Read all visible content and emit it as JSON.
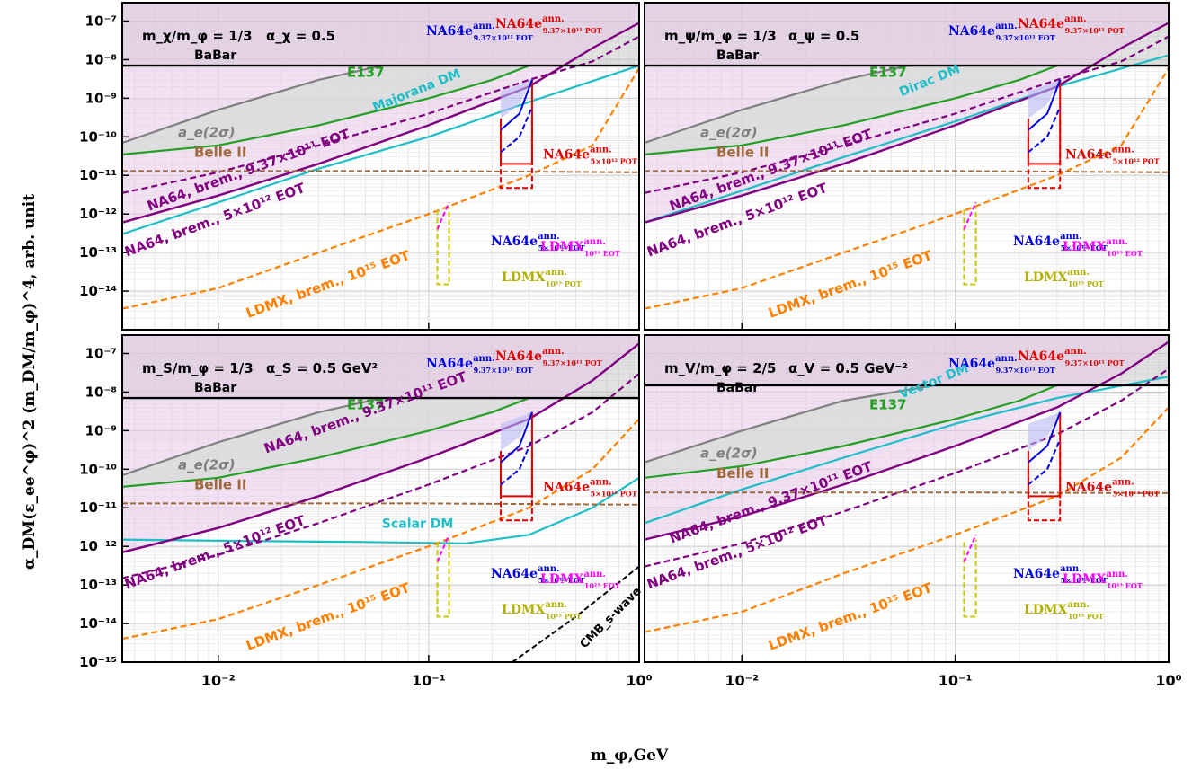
{
  "figure": {
    "ylabel": "α_DM(ε_ee^φ)^2 (m_DM/m_φ)^4, arb. unit",
    "xlabel": "m_φ,GeV",
    "xtick_labels": [
      "10⁻²",
      "10⁻¹",
      "10⁰"
    ],
    "ytick_labels": [
      "10⁻¹⁵",
      "10⁻¹⁴",
      "10⁻¹³",
      "10⁻¹²",
      "10⁻¹¹",
      "10⁻¹⁰",
      "10⁻⁹",
      "10⁻⁸",
      "10⁻⁷"
    ]
  },
  "colors": {
    "babar": "#000000",
    "ae": "#808080",
    "e137": "#22a022",
    "belle": "#a0693a",
    "na64": "#800080",
    "ldmx_brem": "#ff8000",
    "dm": "#1cbfc8",
    "ann_na64_e": "#e00000",
    "ann_na64_e_eot": "#0000e0",
    "ldmx_pot": "#c8c800",
    "ldmx_eot": "#ff00ff",
    "cmb": "#000000"
  },
  "chart_data": [
    {
      "type": "line",
      "header": {
        "ratio": "m_χ/m_φ = 1/3",
        "coupling": "α_χ = 0.5"
      },
      "xlim": [
        0.0035,
        1.0
      ],
      "ylim": [
        1e-15,
        3e-07
      ],
      "xscale": "log",
      "yscale": "log",
      "grid": true,
      "labels": {
        "babar": "BaBar",
        "ae": "a_e(2σ)",
        "e137": "E137",
        "dm": "Majorana DM",
        "belle": "Belle II",
        "na64_937": "NA64, brem., 9.37×10¹¹ EOT",
        "na64_5": "NA64, brem., 5×10¹² EOT",
        "ldmx": "LDMX, brem., 10¹⁵ EOT"
      },
      "series": [
        {
          "name": "BaBar",
          "x": [
            0.0035,
            1.0
          ],
          "y": [
            7e-09,
            7e-09
          ]
        },
        {
          "name": "a_e(2σ)",
          "x": [
            0.0035,
            0.01,
            0.03,
            0.06
          ],
          "y": [
            7e-11,
            5e-10,
            3e-09,
            7e-09
          ]
        },
        {
          "name": "E137",
          "x": [
            0.0035,
            0.01,
            0.03,
            0.1,
            0.2,
            0.3
          ],
          "y": [
            3.5e-11,
            6e-11,
            2e-10,
            1e-09,
            3e-09,
            7e-09
          ]
        },
        {
          "name": "Majorana DM",
          "x": [
            0.0035,
            0.01,
            0.03,
            0.1,
            0.3,
            1.0
          ],
          "y": [
            3e-13,
            2e-12,
            1.5e-11,
            1e-10,
            8e-10,
            7e-09
          ]
        },
        {
          "name": "NA64, brem., 9.37×10¹¹ EOT",
          "x": [
            0.0035,
            0.01,
            0.03,
            0.1,
            0.3,
            0.6,
            1.0
          ],
          "y": [
            6e-13,
            3e-12,
            2e-11,
            2e-10,
            2e-09,
            2e-08,
            9e-08
          ]
        },
        {
          "name": "NA64, brem., 5×10¹² EOT",
          "x": [
            0.0035,
            0.01,
            0.03,
            0.1,
            0.3,
            0.6,
            1.0
          ],
          "y": [
            3.5e-12,
            1.2e-11,
            6e-11,
            4e-10,
            3e-09,
            9e-09,
            4e-08
          ]
        },
        {
          "name": "LDMX, brem., 10¹⁵ EOT",
          "x": [
            0.0035,
            0.01,
            0.03,
            0.1,
            0.3,
            0.6,
            1.0
          ],
          "y": [
            3.5e-15,
            1.2e-14,
            1e-13,
            1e-12,
            1e-11,
            6e-11,
            6e-09
          ]
        },
        {
          "name": "Belle II",
          "x": [
            0.0035,
            0.1,
            1.0
          ],
          "y": [
            1.3e-11,
            1.3e-11,
            1.2e-11
          ]
        }
      ],
      "annotations": [
        {
          "base": "NA64e",
          "sup": "ann.",
          "sub": "9.37×10¹¹ POT",
          "color": "#e00000"
        },
        {
          "base": "NA64e",
          "sup": "ann.",
          "sub": "9.37×10¹¹ EOT",
          "color": "#0000e0"
        },
        {
          "base": "NA64e",
          "sup": "ann.",
          "sub": "5×10¹² POT",
          "color": "#e00000"
        },
        {
          "base": "NA64e",
          "sup": "ann.",
          "sub": "5×10¹² EOT",
          "color": "#0000e0"
        },
        {
          "base": "LDMX",
          "sup": "ann.",
          "sub": "10¹⁵ EOT",
          "color": "#ff00ff"
        },
        {
          "base": "LDMX",
          "sup": "ann.",
          "sub": "10¹⁵ POT",
          "color": "#b0b000"
        }
      ]
    },
    {
      "type": "line",
      "header": {
        "ratio": "m_ψ/m_φ = 1/3",
        "coupling": "α_ψ = 0.5"
      },
      "xlim": [
        0.0035,
        1.0
      ],
      "ylim": [
        1e-15,
        3e-07
      ],
      "xscale": "log",
      "yscale": "log",
      "grid": true,
      "labels": {
        "babar": "BaBar",
        "ae": "a_e(2σ)",
        "e137": "E137",
        "dm": "Dirac DM",
        "belle": "Belle II",
        "na64_937": "NA64, brem., 9.37×10¹¹ EOT",
        "na64_5": "NA64, brem., 5×10¹² EOT",
        "ldmx": "LDMX, brem., 10¹⁵ EOT"
      },
      "series": [
        {
          "name": "BaBar",
          "x": [
            0.0035,
            1.0
          ],
          "y": [
            7e-09,
            7e-09
          ]
        },
        {
          "name": "a_e(2σ)",
          "x": [
            0.0035,
            0.01,
            0.03,
            0.06
          ],
          "y": [
            7e-11,
            5e-10,
            3e-09,
            7e-09
          ]
        },
        {
          "name": "E137",
          "x": [
            0.0035,
            0.01,
            0.03,
            0.1,
            0.2,
            0.3
          ],
          "y": [
            3.5e-11,
            6e-11,
            2e-10,
            1e-09,
            3e-09,
            7e-09
          ]
        },
        {
          "name": "Dirac DM",
          "x": [
            0.0035,
            0.01,
            0.03,
            0.1,
            0.3,
            1.0
          ],
          "y": [
            6e-13,
            4e-12,
            3e-11,
            2.5e-10,
            2e-09,
            1.3e-08
          ]
        },
        {
          "name": "NA64, brem., 9.37×10¹¹ EOT",
          "x": [
            0.0035,
            0.01,
            0.03,
            0.1,
            0.3,
            0.6,
            1.0
          ],
          "y": [
            6e-13,
            3e-12,
            2e-11,
            2e-10,
            2e-09,
            2e-08,
            9e-08
          ]
        },
        {
          "name": "NA64, brem., 5×10¹² EOT",
          "x": [
            0.0035,
            0.01,
            0.03,
            0.1,
            0.3,
            0.6,
            1.0
          ],
          "y": [
            3.5e-12,
            1.2e-11,
            6e-11,
            4e-10,
            3e-09,
            9e-09,
            4e-08
          ]
        },
        {
          "name": "LDMX, brem., 10¹⁵ EOT",
          "x": [
            0.0035,
            0.01,
            0.03,
            0.1,
            0.3,
            0.6,
            1.0
          ],
          "y": [
            3.5e-15,
            1.2e-14,
            1e-13,
            1e-12,
            1e-11,
            6e-11,
            6e-09
          ]
        },
        {
          "name": "Belle II",
          "x": [
            0.0035,
            0.1,
            1.0
          ],
          "y": [
            1.3e-11,
            1.3e-11,
            1.2e-11
          ]
        }
      ],
      "annotations": [
        {
          "base": "NA64e",
          "sup": "ann.",
          "sub": "9.37×10¹¹ POT",
          "color": "#e00000"
        },
        {
          "base": "NA64e",
          "sup": "ann.",
          "sub": "9.37×10¹¹ EOT",
          "color": "#0000e0"
        },
        {
          "base": "NA64e",
          "sup": "ann.",
          "sub": "5×10¹² POT",
          "color": "#e00000"
        },
        {
          "base": "NA64e",
          "sup": "ann.",
          "sub": "5×10¹² EOT",
          "color": "#0000e0"
        },
        {
          "base": "LDMX",
          "sup": "ann.",
          "sub": "10¹⁵ EOT",
          "color": "#ff00ff"
        },
        {
          "base": "LDMX",
          "sup": "ann.",
          "sub": "10¹⁵ POT",
          "color": "#b0b000"
        }
      ]
    },
    {
      "type": "line",
      "header": {
        "ratio": "m_S/m_φ = 1/3",
        "coupling": "α_S = 0.5 GeV²"
      },
      "xlim": [
        0.0035,
        1.0
      ],
      "ylim": [
        1e-15,
        3e-07
      ],
      "xscale": "log",
      "yscale": "log",
      "grid": true,
      "labels": {
        "babar": "BaBar",
        "ae": "a_e(2σ)",
        "e137": "E137",
        "dm": "Scalar DM",
        "belle": "Belle II",
        "na64_937": "NA64, brem., 9.37×10¹¹ EOT",
        "na64_5": "NA64, brem., 5×10¹² EOT",
        "ldmx": "LDMX, brem., 10¹⁵ EOT",
        "cmb": "CMB_s-wave"
      },
      "series": [
        {
          "name": "BaBar",
          "x": [
            0.0035,
            1.0
          ],
          "y": [
            7e-09,
            7e-09
          ]
        },
        {
          "name": "a_e(2σ)",
          "x": [
            0.0035,
            0.01,
            0.03,
            0.06
          ],
          "y": [
            7e-11,
            5e-10,
            3e-09,
            7e-09
          ]
        },
        {
          "name": "E137",
          "x": [
            0.0035,
            0.01,
            0.03,
            0.1,
            0.2,
            0.3
          ],
          "y": [
            3.5e-11,
            6e-11,
            2e-10,
            1e-09,
            3e-09,
            7e-09
          ]
        },
        {
          "name": "Scalar DM",
          "x": [
            0.0035,
            0.01,
            0.05,
            0.15,
            0.3,
            0.6,
            1.0
          ],
          "y": [
            1.5e-12,
            1.4e-12,
            1.3e-12,
            1.2e-12,
            2e-12,
            1e-11,
            6e-11
          ]
        },
        {
          "name": "NA64, brem., 9.37×10¹¹ EOT",
          "x": [
            0.0035,
            0.01,
            0.03,
            0.1,
            0.3,
            0.6,
            1.0
          ],
          "y": [
            7e-13,
            3e-12,
            2e-11,
            2e-10,
            2e-09,
            2e-08,
            1.8e-07
          ]
        },
        {
          "name": "NA64, brem., 5×10¹² EOT",
          "x": [
            0.0035,
            0.01,
            0.03,
            0.1,
            0.3,
            0.6,
            1.0
          ],
          "y": [
            1.5e-13,
            6e-13,
            4e-12,
            4e-11,
            4e-10,
            3e-09,
            3e-08
          ]
        },
        {
          "name": "LDMX, brem., 10¹⁵ EOT",
          "x": [
            0.0035,
            0.01,
            0.03,
            0.1,
            0.3,
            0.6,
            1.0
          ],
          "y": [
            4e-15,
            1.3e-14,
            1e-13,
            1e-12,
            1e-11,
            1e-10,
            2e-09
          ]
        },
        {
          "name": "Belle II",
          "x": [
            0.0035,
            0.1,
            1.0
          ],
          "y": [
            1.3e-11,
            1.3e-11,
            1.2e-11
          ]
        },
        {
          "name": "CMB_s-wave",
          "x": [
            0.25,
            0.5,
            1.0
          ],
          "y": [
            1e-15,
            1.5e-14,
            3e-13
          ]
        }
      ],
      "annotations": [
        {
          "base": "NA64e",
          "sup": "ann.",
          "sub": "9.37×10¹¹ POT",
          "color": "#e00000"
        },
        {
          "base": "NA64e",
          "sup": "ann.",
          "sub": "9.37×10¹¹ EOT",
          "color": "#0000e0"
        },
        {
          "base": "NA64e",
          "sup": "ann.",
          "sub": "5×10¹² POT",
          "color": "#e00000"
        },
        {
          "base": "NA64e",
          "sup": "ann.",
          "sub": "5×10¹² EOT",
          "color": "#0000e0"
        },
        {
          "base": "LDMX",
          "sup": "ann.",
          "sub": "10¹⁵ EOT",
          "color": "#ff00ff"
        },
        {
          "base": "LDMX",
          "sup": "ann.",
          "sub": "10¹⁵ POT",
          "color": "#b0b000"
        }
      ]
    },
    {
      "type": "line",
      "header": {
        "ratio": "m_V/m_φ = 2/5",
        "coupling": "α_V = 0.5 GeV⁻²"
      },
      "xlim": [
        0.0035,
        1.0
      ],
      "ylim": [
        1e-15,
        3e-07
      ],
      "xscale": "log",
      "yscale": "log",
      "grid": true,
      "labels": {
        "babar": "BaBar",
        "ae": "a_e(2σ)",
        "e137": "E137",
        "dm": "Vector DM",
        "belle": "Belle II",
        "na64_937": "NA64, brem., 9.37×10¹¹ EOT",
        "na64_5": "NA64, brem., 5×10¹² EOT",
        "ldmx": "LDMX, brem., 10¹⁵ EOT"
      },
      "series": [
        {
          "name": "BaBar",
          "x": [
            0.0035,
            1.0
          ],
          "y": [
            1.5e-08,
            1.5e-08
          ]
        },
        {
          "name": "a_e(2σ)",
          "x": [
            0.0035,
            0.01,
            0.03,
            0.08
          ],
          "y": [
            1.5e-10,
            1e-09,
            6e-09,
            1.5e-08
          ]
        },
        {
          "name": "E137",
          "x": [
            0.0035,
            0.01,
            0.03,
            0.1,
            0.2,
            0.3
          ],
          "y": [
            6e-11,
            1.2e-10,
            4e-10,
            2e-09,
            6e-09,
            1.5e-08
          ]
        },
        {
          "name": "Vector DM",
          "x": [
            0.0035,
            0.01,
            0.03,
            0.1,
            0.3,
            1.0
          ],
          "y": [
            4e-12,
            3e-11,
            2e-10,
            1.5e-09,
            7e-09,
            2.5e-08
          ]
        },
        {
          "name": "NA64, brem., 9.37×10¹¹ EOT",
          "x": [
            0.0035,
            0.01,
            0.03,
            0.1,
            0.3,
            0.6,
            1.0
          ],
          "y": [
            1.5e-12,
            6e-12,
            4e-11,
            4e-10,
            4e-09,
            3e-08,
            2e-07
          ]
        },
        {
          "name": "NA64, brem., 5×10¹² EOT",
          "x": [
            0.0035,
            0.01,
            0.03,
            0.1,
            0.3,
            0.6,
            1.0
          ],
          "y": [
            3e-13,
            1.2e-12,
            8e-12,
            8e-11,
            8e-10,
            6e-09,
            4e-08
          ]
        },
        {
          "name": "LDMX, brem., 10¹⁵ EOT",
          "x": [
            0.0035,
            0.01,
            0.03,
            0.1,
            0.3,
            0.6,
            1.0
          ],
          "y": [
            6e-15,
            2e-14,
            2e-13,
            2e-12,
            2e-11,
            2e-10,
            4e-09
          ]
        },
        {
          "name": "Belle II",
          "x": [
            0.0035,
            0.1,
            1.0
          ],
          "y": [
            2.5e-11,
            2.5e-11,
            2.4e-11
          ]
        }
      ],
      "annotations": [
        {
          "base": "NA64e",
          "sup": "ann.",
          "sub": "9.37×10¹¹ POT",
          "color": "#e00000"
        },
        {
          "base": "NA64e",
          "sup": "ann.",
          "sub": "9.37×10¹¹ EOT",
          "color": "#0000e0"
        },
        {
          "base": "NA64e",
          "sup": "ann.",
          "sub": "5×10¹² POT",
          "color": "#e00000"
        },
        {
          "base": "NA64e",
          "sup": "ann.",
          "sub": "5×10¹² EOT",
          "color": "#0000e0"
        },
        {
          "base": "LDMX",
          "sup": "ann.",
          "sub": "10¹⁵ EOT",
          "color": "#ff00ff"
        },
        {
          "base": "LDMX",
          "sup": "ann.",
          "sub": "10¹⁵ POT",
          "color": "#b0b000"
        }
      ]
    }
  ]
}
